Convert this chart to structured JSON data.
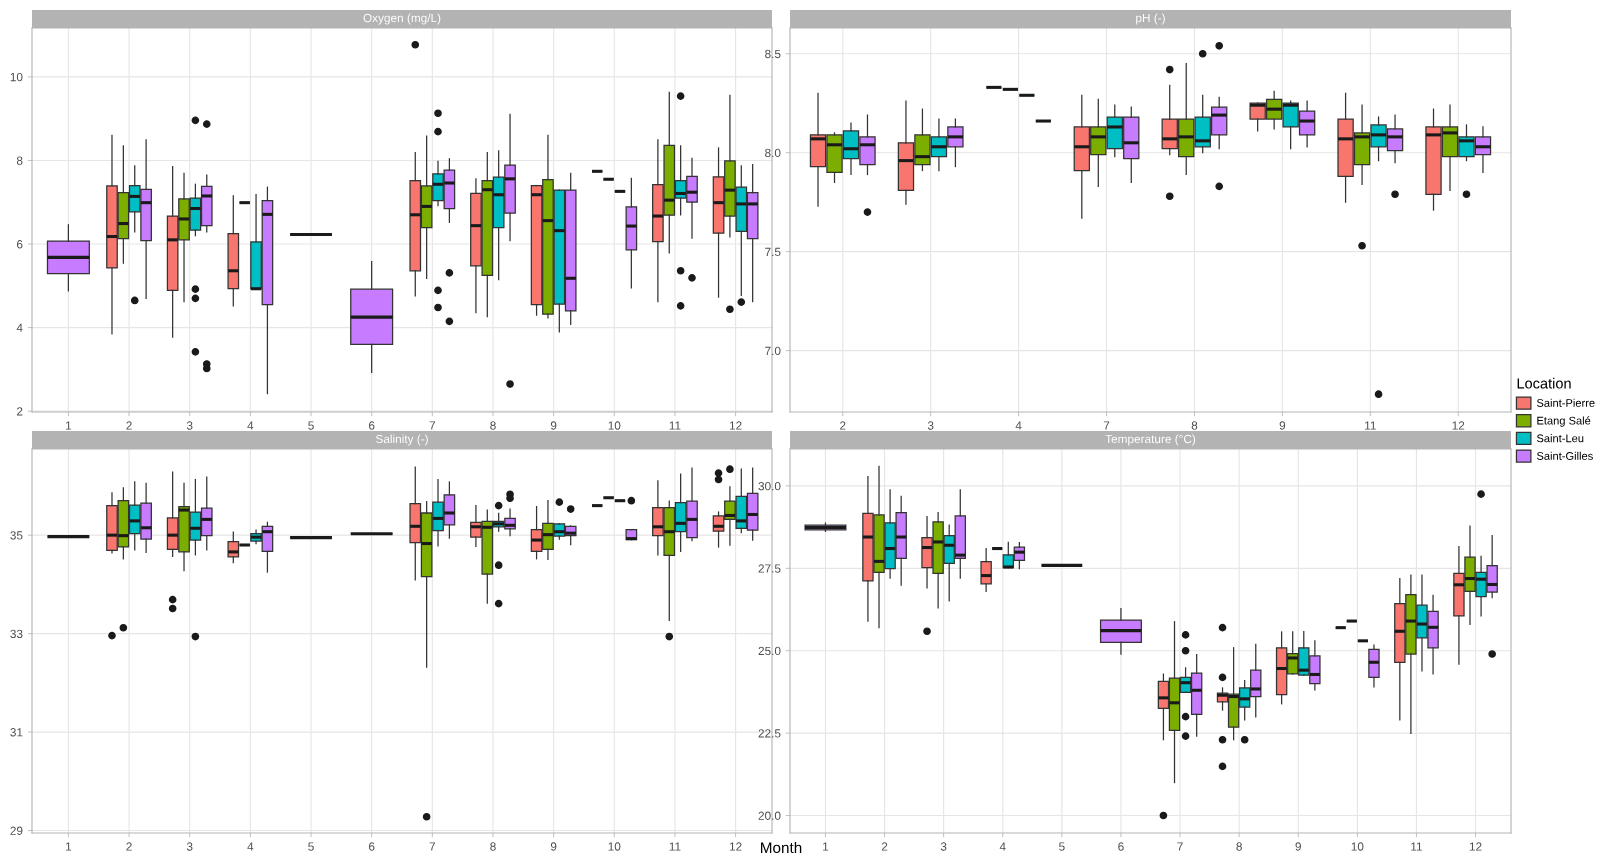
{
  "chart_data": [
    {
      "type": "box",
      "title": "Oxygen (mg/L)",
      "categories": [
        "1",
        "2",
        "3",
        "4",
        "5",
        "6",
        "7",
        "8",
        "9",
        "10",
        "11",
        "12"
      ],
      "ylim": [
        1.98,
        11.17
      ],
      "yticks": [
        2,
        4,
        6,
        8,
        10
      ],
      "grid": true,
      "legend": "right",
      "legend_title": "Location",
      "series": [
        {
          "name": "Saint-Pierre",
          "color": "#f8766d",
          "boxes": [
            null,
            {
              "low": 3.85,
              "q1": 5.43,
              "median": 6.18,
              "q3": 7.39,
              "high": 8.6
            },
            {
              "low": 3.77,
              "q1": 4.89,
              "median": 6.1,
              "q3": 6.67,
              "high": 7.85
            },
            {
              "low": 4.52,
              "q1": 4.93,
              "median": 5.36,
              "q3": 6.25,
              "high": 7.15
            },
            null,
            null,
            {
              "low": 4.76,
              "q1": 5.36,
              "median": 6.7,
              "q3": 7.52,
              "high": 8.19,
              "outliers": [
                10.77
              ]
            },
            {
              "low": 4.36,
              "q1": 5.48,
              "median": 6.44,
              "q3": 7.21,
              "high": 7.56
            },
            {
              "low": 4.3,
              "q1": 4.55,
              "median": 7.18,
              "q3": 7.4,
              "high": 7.4
            },
            {
              "low": 7.74,
              "q1": 7.74,
              "median": 7.74,
              "q3": 7.74,
              "high": 7.74
            },
            {
              "low": 4.62,
              "q1": 6.06,
              "median": 6.67,
              "q3": 7.42,
              "high": 8.49
            },
            {
              "low": 4.73,
              "q1": 6.26,
              "median": 6.99,
              "q3": 7.61,
              "high": 8.3
            }
          ]
        },
        {
          "name": "Etang Salé",
          "color": "#7cae00",
          "boxes": [
            null,
            {
              "low": 5.54,
              "q1": 6.13,
              "median": 6.49,
              "q3": 7.23,
              "high": 8.35
            },
            {
              "low": 4.62,
              "q1": 6.1,
              "median": 6.6,
              "q3": 7.08,
              "high": 7.69
            },
            {
              "low": 6.99,
              "q1": 6.99,
              "median": 6.99,
              "q3": 6.99,
              "high": 6.99
            },
            null,
            null,
            {
              "low": 5.18,
              "q1": 6.39,
              "median": 6.9,
              "q3": 7.39,
              "high": 8.58
            },
            {
              "low": 4.26,
              "q1": 5.25,
              "median": 7.3,
              "q3": 7.52,
              "high": 8.19
            },
            {
              "low": 4.23,
              "q1": 4.32,
              "median": 6.56,
              "q3": 7.54,
              "high": 8.6
            },
            {
              "low": 7.55,
              "q1": 7.55,
              "median": 7.55,
              "q3": 7.55,
              "high": 7.55
            },
            {
              "low": 5.79,
              "q1": 6.69,
              "median": 7.05,
              "q3": 8.36,
              "high": 9.63
            },
            {
              "low": 6.17,
              "q1": 6.67,
              "median": 7.29,
              "q3": 7.99,
              "high": 9.56,
              "outliers": [
                4.44
              ]
            }
          ]
        },
        {
          "name": "Saint-Leu",
          "color": "#00bfc4",
          "boxes": [
            null,
            {
              "low": 6.29,
              "q1": 6.77,
              "median": 7.14,
              "q3": 7.4,
              "high": 7.87,
              "outliers": [
                4.65
              ]
            },
            {
              "low": 6.2,
              "q1": 6.33,
              "median": 6.85,
              "q3": 7.1,
              "high": 7.43,
              "outliers": [
                8.96,
                4.92,
                4.7,
                3.42
              ]
            },
            {
              "low": 4.93,
              "q1": 4.93,
              "median": 4.93,
              "q3": 6.05,
              "high": 7.18
            },
            null,
            null,
            {
              "low": 6.92,
              "q1": 7.04,
              "median": 7.43,
              "q3": 7.68,
              "high": 7.98,
              "outliers": [
                9.13,
                8.69,
                4.89,
                4.48
              ]
            },
            {
              "low": 5.15,
              "q1": 6.39,
              "median": 7.18,
              "q3": 7.6,
              "high": 8.23
            },
            {
              "low": 3.9,
              "q1": 4.56,
              "median": 6.32,
              "q3": 7.29,
              "high": 7.29
            },
            {
              "low": 7.26,
              "q1": 7.26,
              "median": 7.26,
              "q3": 7.26,
              "high": 7.26
            },
            {
              "low": 6.7,
              "q1": 7.1,
              "median": 7.21,
              "q3": 7.52,
              "high": 8.35,
              "outliers": [
                9.54,
                5.36,
                4.52
              ]
            },
            {
              "low": 4.77,
              "q1": 6.3,
              "median": 6.96,
              "q3": 7.36,
              "high": 7.87,
              "outliers": [
                4.61
              ]
            }
          ]
        },
        {
          "name": "Saint-Gilles",
          "color": "#c77cff",
          "boxes": [
            {
              "low": 4.88,
              "q1": 5.29,
              "median": 5.68,
              "q3": 6.07,
              "high": 6.46
            },
            {
              "low": 4.7,
              "q1": 6.08,
              "median": 6.99,
              "q3": 7.31,
              "high": 8.49
            },
            {
              "low": 6.29,
              "q1": 6.44,
              "median": 7.15,
              "q3": 7.38,
              "high": 7.65,
              "outliers": [
                8.87,
                3.13,
                3.02
              ]
            },
            {
              "low": 2.42,
              "q1": 4.55,
              "median": 6.71,
              "q3": 7.04,
              "high": 7.36
            },
            {
              "low": 6.23,
              "q1": 6.23,
              "median": 6.23,
              "q3": 6.23,
              "high": 6.23
            },
            {
              "low": 2.93,
              "q1": 3.6,
              "median": 4.25,
              "q3": 4.92,
              "high": 5.58
            },
            {
              "low": 6.52,
              "q1": 6.85,
              "median": 7.46,
              "q3": 7.77,
              "high": 8.04,
              "outliers": [
                5.31,
                4.15
              ]
            },
            {
              "low": 6.08,
              "q1": 6.74,
              "median": 7.56,
              "q3": 7.89,
              "high": 9.1,
              "outliers": [
                2.65
              ]
            },
            {
              "low": 4.08,
              "q1": 4.4,
              "median": 5.18,
              "q3": 7.29,
              "high": 7.69
            },
            {
              "low": 4.95,
              "q1": 5.86,
              "median": 6.43,
              "q3": 6.89,
              "high": 7.57
            },
            {
              "low": 6.14,
              "q1": 7.0,
              "median": 7.24,
              "q3": 7.62,
              "high": 8.05,
              "outliers": [
                5.19
              ]
            },
            {
              "low": 4.62,
              "q1": 6.13,
              "median": 6.96,
              "q3": 7.23,
              "high": 7.9
            }
          ]
        }
      ]
    },
    {
      "type": "box",
      "title": "pH (-)",
      "categories": [
        "2",
        "3",
        "4",
        "7",
        "8",
        "9",
        "11",
        "12"
      ],
      "ylim": [
        6.69,
        8.63
      ],
      "yticks": [
        {
          "value": 7,
          "label": "7.0"
        },
        7.5,
        {
          "value": 8,
          "label": "8.0"
        },
        8.5
      ],
      "grid": true,
      "series": [
        {
          "name": "Saint-Pierre",
          "color": "#f8766d",
          "boxes": [
            {
              "low": 7.73,
              "q1": 7.93,
              "median": 8.07,
              "q3": 8.09,
              "high": 8.3
            },
            {
              "low": 7.74,
              "q1": 7.81,
              "median": 7.96,
              "q3": 8.05,
              "high": 8.26
            },
            {
              "low": 8.33,
              "q1": 8.33,
              "median": 8.33,
              "q3": 8.33,
              "high": 8.33
            },
            {
              "low": 7.67,
              "q1": 7.91,
              "median": 8.03,
              "q3": 8.13,
              "high": 8.29
            },
            {
              "low": 7.99,
              "q1": 8.02,
              "median": 8.07,
              "q3": 8.17,
              "high": 8.34,
              "outliers": [
                8.42,
                7.78
              ]
            },
            {
              "low": 8.11,
              "q1": 8.17,
              "median": 8.24,
              "q3": 8.25,
              "high": 8.25
            },
            {
              "low": 7.75,
              "q1": 7.88,
              "median": 8.07,
              "q3": 8.17,
              "high": 8.3
            },
            {
              "low": 7.71,
              "q1": 7.79,
              "median": 8.09,
              "q3": 8.13,
              "high": 8.22
            }
          ]
        },
        {
          "name": "Etang Salé",
          "color": "#7cae00",
          "boxes": [
            {
              "low": 7.85,
              "q1": 7.9,
              "median": 8.04,
              "q3": 8.09,
              "high": 8.1
            },
            {
              "low": 7.91,
              "q1": 7.94,
              "median": 7.98,
              "q3": 8.09,
              "high": 8.22
            },
            {
              "low": 8.32,
              "q1": 8.32,
              "median": 8.32,
              "q3": 8.32,
              "high": 8.32
            },
            {
              "low": 7.83,
              "q1": 7.99,
              "median": 8.08,
              "q3": 8.13,
              "high": 8.27
            },
            {
              "low": 7.89,
              "q1": 7.98,
              "median": 8.08,
              "q3": 8.17,
              "high": 8.45
            },
            {
              "low": 8.12,
              "q1": 8.17,
              "median": 8.22,
              "q3": 8.27,
              "high": 8.31
            },
            {
              "low": 7.84,
              "q1": 7.94,
              "median": 8.08,
              "q3": 8.1,
              "high": 8.24,
              "outliers": [
                7.53
              ]
            },
            {
              "low": 7.81,
              "q1": 7.98,
              "median": 8.1,
              "q3": 8.13,
              "high": 8.24
            }
          ]
        },
        {
          "name": "Saint-Leu",
          "color": "#00bfc4",
          "boxes": [
            {
              "low": 7.89,
              "q1": 7.97,
              "median": 8.02,
              "q3": 8.11,
              "high": 8.15
            },
            {
              "low": 7.91,
              "q1": 7.98,
              "median": 8.03,
              "q3": 8.08,
              "high": 8.17
            },
            {
              "low": 8.29,
              "q1": 8.29,
              "median": 8.29,
              "q3": 8.29,
              "high": 8.29
            },
            {
              "low": 7.98,
              "q1": 8.02,
              "median": 8.13,
              "q3": 8.18,
              "high": 8.24
            },
            {
              "low": 8.0,
              "q1": 8.03,
              "median": 8.06,
              "q3": 8.18,
              "high": 8.29,
              "outliers": [
                8.5
              ]
            },
            {
              "low": 8.02,
              "q1": 8.13,
              "median": 8.24,
              "q3": 8.25,
              "high": 8.26
            },
            {
              "low": 7.96,
              "q1": 8.03,
              "median": 8.09,
              "q3": 8.14,
              "high": 8.18,
              "outliers": [
                6.78
              ]
            },
            {
              "low": 7.96,
              "q1": 7.98,
              "median": 8.06,
              "q3": 8.08,
              "high": 8.14,
              "outliers": [
                7.79
              ]
            }
          ]
        },
        {
          "name": "Saint-Gilles",
          "color": "#c77cff",
          "boxes": [
            {
              "low": 7.89,
              "q1": 7.94,
              "median": 8.04,
              "q3": 8.08,
              "high": 8.19,
              "outliers": [
                7.7
              ]
            },
            {
              "low": 7.93,
              "q1": 8.03,
              "median": 8.08,
              "q3": 8.13,
              "high": 8.17
            },
            {
              "low": 8.16,
              "q1": 8.16,
              "median": 8.16,
              "q3": 8.16,
              "high": 8.16
            },
            {
              "low": 7.85,
              "q1": 7.97,
              "median": 8.05,
              "q3": 8.18,
              "high": 8.23
            },
            {
              "low": 8.02,
              "q1": 8.09,
              "median": 8.19,
              "q3": 8.23,
              "high": 8.28,
              "outliers": [
                8.54,
                7.83
              ]
            },
            {
              "low": 8.03,
              "q1": 8.09,
              "median": 8.16,
              "q3": 8.21,
              "high": 8.26
            },
            {
              "low": 7.95,
              "q1": 8.01,
              "median": 8.08,
              "q3": 8.12,
              "high": 8.19,
              "outliers": [
                7.79
              ]
            },
            {
              "low": 7.9,
              "q1": 7.99,
              "median": 8.03,
              "q3": 8.08,
              "high": 8.13
            }
          ]
        }
      ]
    },
    {
      "type": "box",
      "title": "Salinity (-)",
      "xlabel": "Month",
      "categories": [
        "1",
        "2",
        "3",
        "4",
        "5",
        "6",
        "7",
        "8",
        "9",
        "10",
        "11",
        "12"
      ],
      "ylim": [
        28.95,
        36.75
      ],
      "yticks": [
        29,
        31,
        33,
        35
      ],
      "grid": true,
      "series": [
        {
          "name": "Saint-Pierre",
          "color": "#f8766d",
          "boxes": [
            null,
            {
              "low": 34.64,
              "q1": 34.69,
              "median": 35.0,
              "q3": 35.6,
              "high": 35.86,
              "outliers": [
                32.96
              ]
            },
            {
              "low": 34.57,
              "q1": 34.71,
              "median": 35.0,
              "q3": 35.35,
              "high": 36.28,
              "outliers": [
                33.69,
                33.51
              ]
            },
            {
              "low": 34.44,
              "q1": 34.56,
              "median": 34.66,
              "q3": 34.87,
              "high": 35.06
            },
            null,
            null,
            {
              "low": 34.09,
              "q1": 34.85,
              "median": 35.18,
              "q3": 35.64,
              "high": 36.38
            },
            {
              "low": 34.77,
              "q1": 34.96,
              "median": 35.17,
              "q3": 35.26,
              "high": 35.6
            },
            {
              "low": 34.52,
              "q1": 34.67,
              "median": 34.9,
              "q3": 35.11,
              "high": 35.58
            },
            {
              "low": 35.6,
              "q1": 35.6,
              "median": 35.6,
              "q3": 35.6,
              "high": 35.6
            },
            {
              "low": 34.6,
              "q1": 34.99,
              "median": 35.17,
              "q3": 35.56,
              "high": 36.1
            },
            {
              "low": 34.76,
              "q1": 35.08,
              "median": 35.18,
              "q3": 35.39,
              "high": 35.47,
              "outliers": [
                36.26,
                36.13
              ]
            }
          ]
        },
        {
          "name": "Etang Salé",
          "color": "#7cae00",
          "boxes": [
            null,
            {
              "low": 34.52,
              "q1": 34.76,
              "median": 34.99,
              "q3": 35.7,
              "high": 35.96,
              "outliers": [
                33.12
              ]
            },
            {
              "low": 34.28,
              "q1": 34.66,
              "median": 35.51,
              "q3": 35.58,
              "high": 36.05
            },
            {
              "low": 34.8,
              "q1": 34.8,
              "median": 34.8,
              "q3": 34.8,
              "high": 34.8
            },
            null,
            null,
            {
              "low": 32.32,
              "q1": 34.16,
              "median": 34.83,
              "q3": 35.45,
              "high": 35.68,
              "outliers": [
                29.28
              ]
            },
            {
              "low": 33.62,
              "q1": 34.21,
              "median": 35.16,
              "q3": 35.28,
              "high": 35.51
            },
            {
              "low": 34.51,
              "q1": 34.71,
              "median": 35.01,
              "q3": 35.24,
              "high": 35.7
            },
            {
              "low": 35.76,
              "q1": 35.76,
              "median": 35.76,
              "q3": 35.76,
              "high": 35.76
            },
            {
              "low": 33.27,
              "q1": 34.59,
              "median": 35.07,
              "q3": 35.56,
              "high": 35.69,
              "outliers": [
                32.94
              ]
            },
            {
              "low": 34.8,
              "q1": 35.32,
              "median": 35.4,
              "q3": 35.69,
              "high": 35.98,
              "outliers": [
                36.34
              ]
            }
          ]
        },
        {
          "name": "Saint-Leu",
          "color": "#00bfc4",
          "boxes": [
            null,
            {
              "low": 34.7,
              "q1": 35.03,
              "median": 35.29,
              "q3": 35.61,
              "high": 36.08
            },
            {
              "low": 34.6,
              "q1": 34.9,
              "median": 35.14,
              "q3": 35.47,
              "high": 36.13,
              "outliers": [
                32.94
              ]
            },
            {
              "low": 34.83,
              "q1": 34.88,
              "median": 34.96,
              "q3": 35.03,
              "high": 35.1
            },
            null,
            null,
            {
              "low": 34.78,
              "q1": 35.09,
              "median": 35.34,
              "q3": 35.67,
              "high": 36.13
            },
            {
              "low": 35.08,
              "q1": 35.17,
              "median": 35.23,
              "q3": 35.28,
              "high": 35.44,
              "outliers": [
                35.6,
                34.39,
                33.61
              ]
            },
            {
              "low": 34.92,
              "q1": 34.98,
              "median": 35.07,
              "q3": 35.23,
              "high": 35.23,
              "outliers": [
                35.67
              ]
            },
            {
              "low": 35.7,
              "q1": 35.7,
              "median": 35.7,
              "q3": 35.7,
              "high": 35.7
            },
            {
              "low": 34.67,
              "q1": 35.07,
              "median": 35.24,
              "q3": 35.66,
              "high": 36.24
            },
            {
              "low": 35.05,
              "q1": 35.14,
              "median": 35.29,
              "q3": 35.79,
              "high": 36.34
            }
          ]
        },
        {
          "name": "Saint-Gilles",
          "color": "#c77cff",
          "boxes": [
            {
              "low": 34.97,
              "q1": 34.97,
              "median": 34.97,
              "q3": 34.97,
              "high": 34.97
            },
            {
              "low": 34.65,
              "q1": 34.92,
              "median": 35.15,
              "q3": 35.65,
              "high": 36.05
            },
            {
              "low": 34.7,
              "q1": 34.99,
              "median": 35.32,
              "q3": 35.55,
              "high": 36.18
            },
            {
              "low": 34.25,
              "q1": 34.67,
              "median": 35.07,
              "q3": 35.18,
              "high": 35.26
            },
            {
              "low": 34.95,
              "q1": 34.95,
              "median": 34.95,
              "q3": 34.95,
              "high": 34.95
            },
            {
              "low": 35.03,
              "q1": 35.03,
              "median": 35.03,
              "q3": 35.03,
              "high": 35.03
            },
            {
              "low": 34.94,
              "q1": 35.21,
              "median": 35.45,
              "q3": 35.82,
              "high": 36.08
            },
            {
              "low": 34.99,
              "q1": 35.13,
              "median": 35.2,
              "q3": 35.34,
              "high": 35.53,
              "outliers": [
                35.83,
                35.75
              ]
            },
            {
              "low": 34.81,
              "q1": 34.99,
              "median": 35.04,
              "q3": 35.18,
              "high": 35.19,
              "outliers": [
                35.53
              ]
            },
            {
              "low": 34.91,
              "q1": 34.91,
              "median": 34.93,
              "q3": 35.11,
              "high": 35.11,
              "outliers": [
                35.7
              ]
            },
            {
              "low": 34.89,
              "q1": 34.95,
              "median": 35.32,
              "q3": 35.69,
              "high": 36.36
            },
            {
              "low": 34.9,
              "q1": 35.1,
              "median": 35.42,
              "q3": 35.85,
              "high": 36.36
            }
          ]
        }
      ]
    },
    {
      "type": "box",
      "title": "Temperature (°C)",
      "categories": [
        "1",
        "2",
        "3",
        "4",
        "5",
        "6",
        "7",
        "8",
        "9",
        "10",
        "11",
        "12"
      ],
      "ylim": [
        19.47,
        31.12
      ],
      "yticks": [
        {
          "value": 20,
          "label": "20.0"
        },
        22.5,
        {
          "value": 25,
          "label": "25.0"
        },
        27.5,
        {
          "value": 30,
          "label": "30.0"
        }
      ],
      "grid": true,
      "series": [
        {
          "name": "Saint-Pierre",
          "color": "#f8766d",
          "boxes": [
            null,
            {
              "low": 25.9,
              "q1": 27.12,
              "median": 28.45,
              "q3": 29.17,
              "high": 30.28
            },
            {
              "low": 26.91,
              "q1": 27.52,
              "median": 28.13,
              "q3": 28.43,
              "high": 29.07,
              "outliers": [
                25.59
              ]
            },
            {
              "low": 26.8,
              "q1": 27.03,
              "median": 27.28,
              "q3": 27.7,
              "high": 28.1
            },
            null,
            null,
            {
              "low": 22.3,
              "q1": 23.25,
              "median": 23.57,
              "q3": 24.07,
              "high": 24.29,
              "outliers": [
                20.0
              ]
            },
            {
              "low": 23.2,
              "q1": 23.45,
              "median": 23.65,
              "q3": 23.71,
              "high": 23.87,
              "outliers": [
                25.7,
                24.19,
                22.3,
                21.49
              ]
            },
            {
              "low": 23.39,
              "q1": 23.67,
              "median": 24.46,
              "q3": 25.09,
              "high": 25.57
            },
            {
              "low": 25.7,
              "q1": 25.7,
              "median": 25.7,
              "q3": 25.7,
              "high": 25.7
            },
            {
              "low": 22.9,
              "q1": 24.65,
              "median": 25.59,
              "q3": 26.43,
              "high": 27.19
            },
            {
              "low": 24.59,
              "q1": 26.06,
              "median": 27.0,
              "q3": 27.35,
              "high": 28.16
            }
          ]
        },
        {
          "name": "Etang Salé",
          "color": "#7cae00",
          "boxes": [
            null,
            {
              "low": 25.7,
              "q1": 27.38,
              "median": 27.71,
              "q3": 29.12,
              "high": 30.59
            },
            {
              "low": 26.3,
              "q1": 27.35,
              "median": 28.3,
              "q3": 28.91,
              "high": 29.19
            },
            {
              "low": 28.1,
              "q1": 28.1,
              "median": 28.1,
              "q3": 28.1,
              "high": 28.1
            },
            null,
            null,
            {
              "low": 21.0,
              "q1": 22.58,
              "median": 23.42,
              "q3": 24.17,
              "high": 25.88
            },
            {
              "low": 22.3,
              "q1": 22.68,
              "median": 23.61,
              "q3": 23.68,
              "high": 25.09
            },
            {
              "low": 24.3,
              "q1": 24.3,
              "median": 24.78,
              "q3": 24.91,
              "high": 25.57
            },
            {
              "low": 25.9,
              "q1": 25.9,
              "median": 25.9,
              "q3": 25.9,
              "high": 25.9
            },
            {
              "low": 22.49,
              "q1": 24.9,
              "median": 25.9,
              "q3": 26.7,
              "high": 27.29
            },
            {
              "low": 25.8,
              "q1": 26.8,
              "median": 27.19,
              "q3": 27.84,
              "high": 28.78
            }
          ]
        },
        {
          "name": "Saint-Leu",
          "color": "#00bfc4",
          "boxes": [
            null,
            {
              "low": 27.2,
              "q1": 27.49,
              "median": 28.1,
              "q3": 28.88,
              "high": 29.88
            },
            {
              "low": 26.51,
              "q1": 27.65,
              "median": 28.2,
              "q3": 28.49,
              "high": 28.81
            },
            {
              "low": 27.52,
              "q1": 27.52,
              "median": 27.54,
              "q3": 27.91,
              "high": 28.29
            },
            null,
            null,
            {
              "low": 23.74,
              "q1": 23.74,
              "median": 24.03,
              "q3": 24.19,
              "high": 24.48,
              "outliers": [
                25.48,
                25.0,
                23.0,
                22.41
              ]
            },
            {
              "low": 22.9,
              "q1": 23.29,
              "median": 23.54,
              "q3": 23.87,
              "high": 24.09,
              "outliers": [
                22.3
              ]
            },
            {
              "low": 24.26,
              "q1": 24.26,
              "median": 24.41,
              "q3": 25.09,
              "high": 25.58
            },
            {
              "low": 25.3,
              "q1": 25.3,
              "median": 25.3,
              "q3": 25.3,
              "high": 25.3
            },
            {
              "low": 24.39,
              "q1": 25.39,
              "median": 25.81,
              "q3": 26.38,
              "high": 27.29
            },
            {
              "low": 26.06,
              "q1": 26.64,
              "median": 27.17,
              "q3": 27.38,
              "high": 27.86,
              "outliers": [
                29.75
              ]
            }
          ]
        },
        {
          "name": "Saint-Gilles",
          "color": "#c77cff",
          "boxes": [
            {
              "low": 28.62,
              "q1": 28.67,
              "median": 28.74,
              "q3": 28.81,
              "high": 28.87
            },
            {
              "low": 26.99,
              "q1": 27.8,
              "median": 28.45,
              "q3": 29.19,
              "high": 29.68
            },
            {
              "low": 27.2,
              "q1": 27.8,
              "median": 27.9,
              "q3": 29.09,
              "high": 29.88
            },
            {
              "low": 27.49,
              "q1": 27.74,
              "median": 27.99,
              "q3": 28.14,
              "high": 28.28
            },
            {
              "low": 27.59,
              "q1": 27.59,
              "median": 27.59,
              "q3": 27.59,
              "high": 27.59
            },
            {
              "low": 24.9,
              "q1": 25.25,
              "median": 25.61,
              "q3": 25.93,
              "high": 26.28
            },
            {
              "low": 22.41,
              "q1": 23.07,
              "median": 23.8,
              "q3": 24.32,
              "high": 24.88
            },
            {
              "low": 22.99,
              "q1": 23.61,
              "median": 23.84,
              "q3": 24.41,
              "high": 25.19
            },
            {
              "low": 23.81,
              "q1": 24.0,
              "median": 24.28,
              "q3": 24.84,
              "high": 25.3
            },
            {
              "low": 23.9,
              "q1": 24.19,
              "median": 24.65,
              "q3": 25.04,
              "high": 25.17
            },
            {
              "low": 24.3,
              "q1": 25.09,
              "median": 25.71,
              "q3": 26.19,
              "high": 26.68
            },
            {
              "low": 26.61,
              "q1": 26.78,
              "median": 27.01,
              "q3": 27.58,
              "high": 28.49,
              "outliers": [
                24.9
              ]
            }
          ]
        }
      ]
    }
  ]
}
